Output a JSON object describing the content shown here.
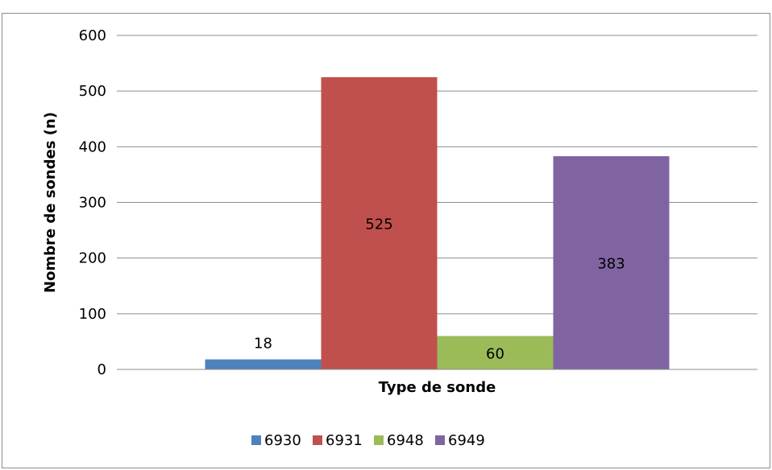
{
  "chart_data": {
    "type": "bar",
    "title": "",
    "xlabel": "Type de sonde",
    "ylabel": "Nombre de sondes (n)",
    "ylim": [
      0,
      600
    ],
    "ytick_step": 100,
    "grid": true,
    "legend_position": "bottom",
    "categories": [
      ""
    ],
    "series": [
      {
        "name": "6930",
        "values": [
          18
        ],
        "color": "#4f81bd"
      },
      {
        "name": "6931",
        "values": [
          525
        ],
        "color": "#c0504d"
      },
      {
        "name": "6948",
        "values": [
          60
        ],
        "color": "#9bbb59"
      },
      {
        "name": "6949",
        "values": [
          383
        ],
        "color": "#8064a2"
      }
    ]
  }
}
